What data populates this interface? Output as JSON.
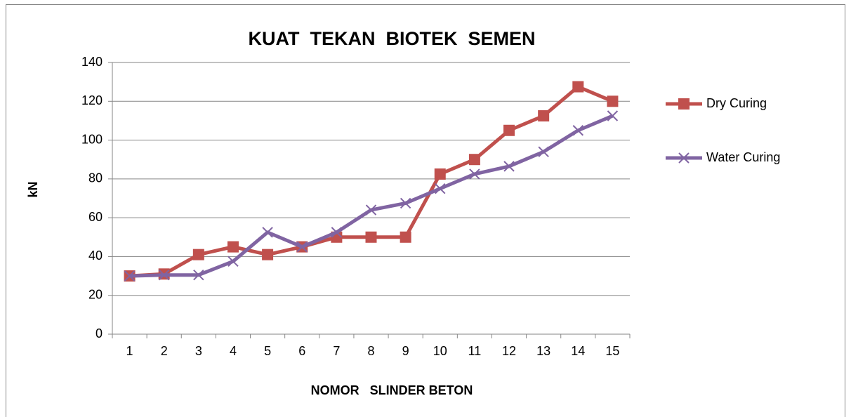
{
  "chart_data": {
    "type": "line",
    "title": "KUAT  TEKAN  BIOTEK  SEMEN",
    "x_label": "NOMOR   SLINDER BETON",
    "y_label": "kN",
    "categories": [
      "1",
      "2",
      "3",
      "4",
      "5",
      "6",
      "7",
      "8",
      "9",
      "10",
      "11",
      "12",
      "13",
      "14",
      "15"
    ],
    "series": [
      {
        "name": "Dry Curing",
        "color": "#c0504d",
        "marker": "square",
        "values": [
          30,
          31,
          41,
          45,
          41,
          45,
          50,
          50,
          50,
          82.5,
          90,
          105,
          112.5,
          127.5,
          120
        ]
      },
      {
        "name": "Water Curing",
        "color": "#8064a2",
        "marker": "x",
        "values": [
          30,
          30.5,
          30.5,
          37.5,
          52.5,
          45,
          52.5,
          64,
          67.5,
          75,
          82.5,
          86.5,
          94,
          105,
          112.5
        ]
      }
    ],
    "ylim": [
      0,
      140
    ],
    "yticks": [
      0,
      20,
      40,
      60,
      80,
      100,
      120,
      140
    ],
    "grid": true,
    "legend": "right"
  }
}
